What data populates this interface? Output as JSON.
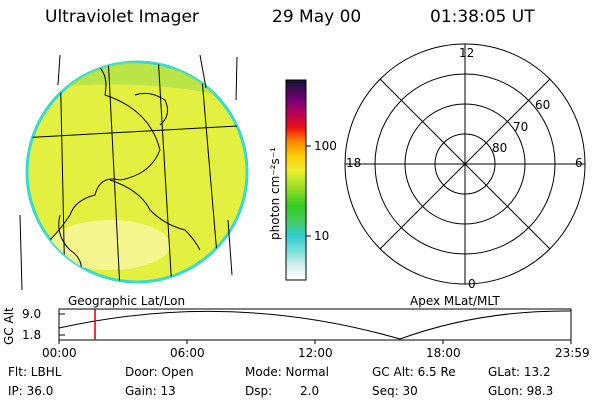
{
  "header": {
    "instrument": "Ultraviolet Imager",
    "date": "29 May 00",
    "time": "01:38:05 UT"
  },
  "colorbar": {
    "unit_label": "photon cm⁻²s⁻¹",
    "ticks": [
      "100",
      "10"
    ]
  },
  "polar_plot": {
    "mlt_labels": {
      "top": "12",
      "left": "18",
      "right": "6",
      "bottom": "0"
    },
    "lat_labels": [
      "60",
      "70",
      "80"
    ]
  },
  "labels": {
    "left_caption": "Geographic Lat/Lon",
    "right_caption": "Apex MLat/MLT"
  },
  "timeline": {
    "ylabel": "GC Alt",
    "ytick_high": "9.0",
    "ytick_low": "1.8",
    "xticks": [
      "00:00",
      "06:00",
      "12:00",
      "18:00",
      "23:59"
    ]
  },
  "status": {
    "flt": "Flt: LBHL",
    "door": "Door: Open",
    "mode": "Mode: Normal",
    "gc_alt": "GC Alt: 6.5 Re",
    "glat": "GLat: 13.2",
    "ip": "IP: 36.0",
    "gain": "Gain: 13",
    "dsp_label": "Dsp:",
    "dsp_value": "2.0",
    "seq": "Seq: 30",
    "glon": "GLon: 98.3"
  },
  "colors": {
    "earth_fill": "#e4f040",
    "earth_edge": "#33dccc",
    "marker": "#cc0000"
  }
}
